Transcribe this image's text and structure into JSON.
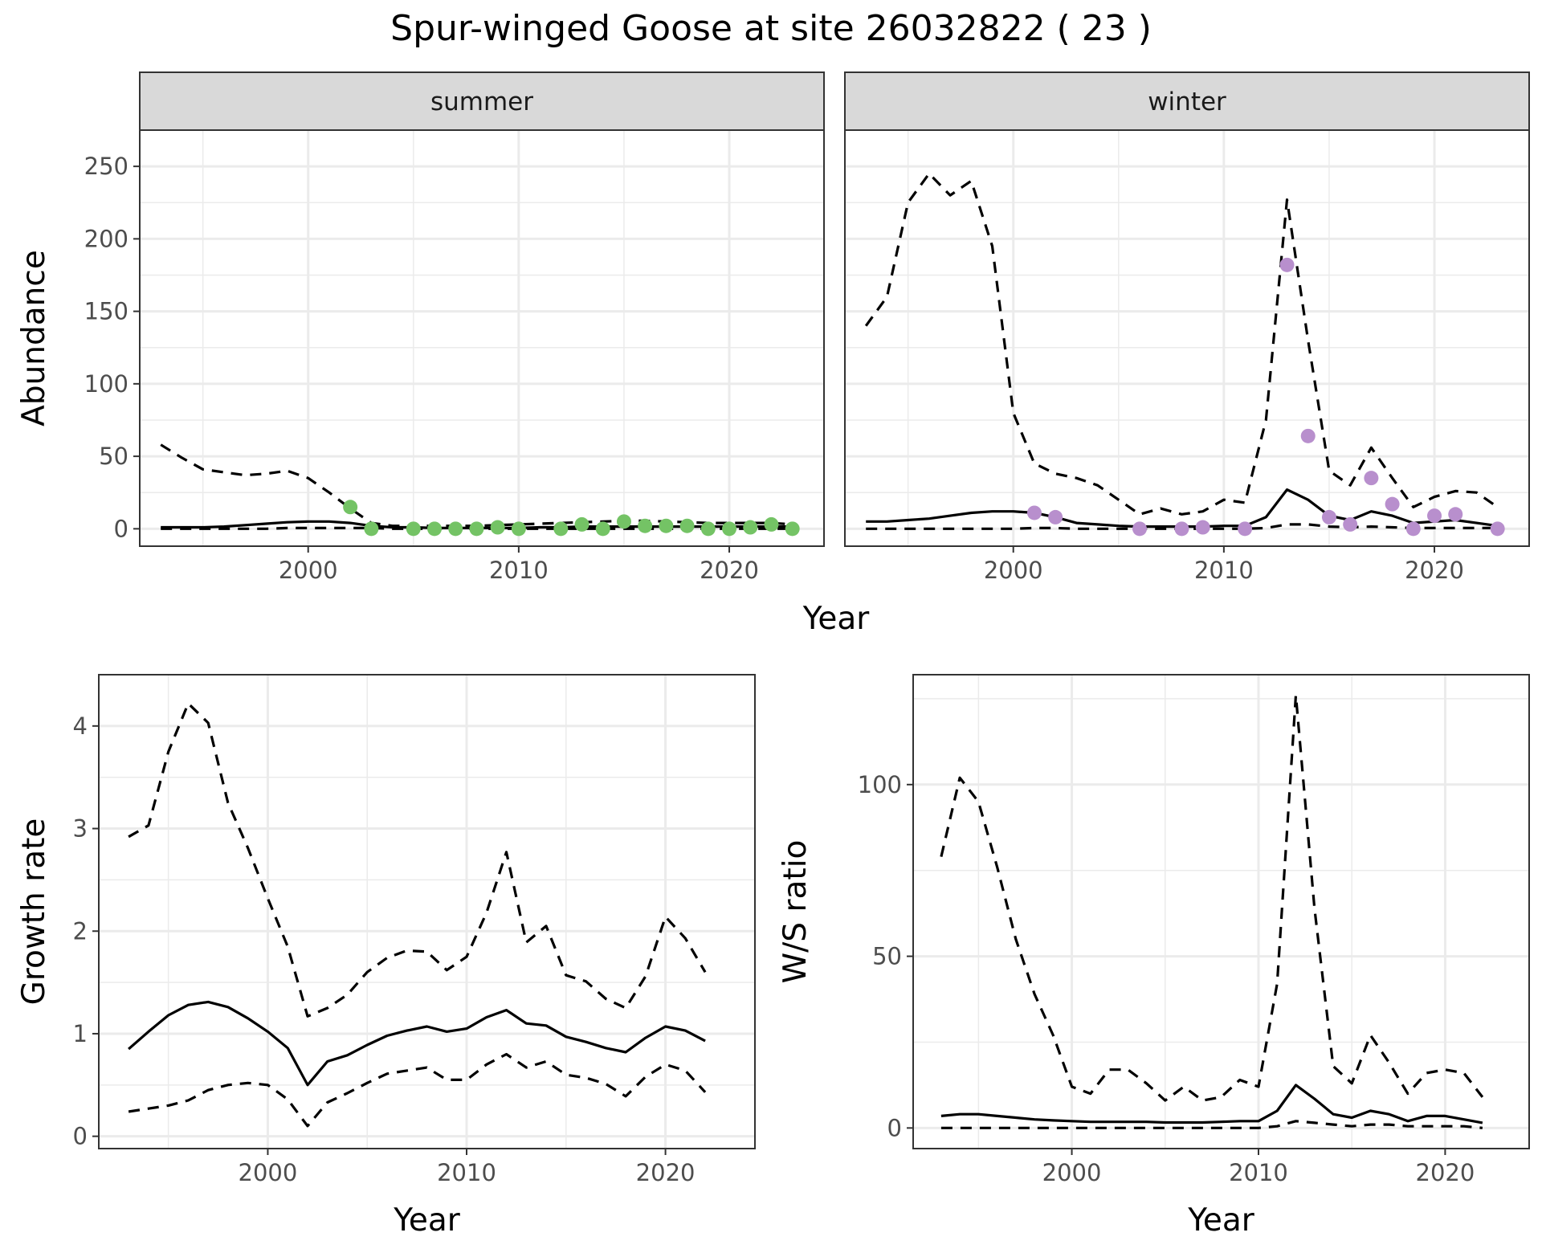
{
  "title": "Spur-winged Goose at site 26032822 ( 23 )",
  "abundance_xlabel": "Year",
  "colors": {
    "summer_points": "#74c365",
    "winter_points": "#b88fcd",
    "lines": "#000000",
    "strip_fill": "#d9d9d9",
    "grid": "#ebebeb"
  },
  "chart_data": [
    {
      "type": "line",
      "facet": "summer",
      "xlabel": "Year",
      "ylabel": "Abundance",
      "xlim": [
        1992,
        2024.5
      ],
      "ylim": [
        -12,
        275
      ],
      "xticks": [
        2000,
        2010,
        2020
      ],
      "yticks": [
        0,
        50,
        100,
        150,
        200,
        250
      ],
      "grid": true,
      "x": [
        1993,
        1994,
        1995,
        1996,
        1997,
        1998,
        1999,
        2000,
        2001,
        2002,
        2003,
        2004,
        2005,
        2006,
        2007,
        2008,
        2009,
        2010,
        2011,
        2012,
        2013,
        2014,
        2015,
        2016,
        2017,
        2018,
        2019,
        2020,
        2021,
        2022,
        2023
      ],
      "series": [
        {
          "role": "estimate",
          "values": [
            1,
            1,
            1,
            1.5,
            2.5,
            3.5,
            4.5,
            5,
            5,
            4,
            2,
            1,
            1,
            0.5,
            0.5,
            0.5,
            0.5,
            0.5,
            1,
            1,
            1.5,
            1.5,
            1.5,
            1.5,
            1.5,
            1.5,
            1.5,
            1.5,
            1.5,
            1.5,
            1.5
          ]
        },
        {
          "role": "upper",
          "values": [
            58,
            49,
            41,
            39,
            37,
            38,
            40,
            35,
            25,
            14,
            4,
            2,
            2,
            2,
            2,
            2,
            2.5,
            3,
            3.5,
            4,
            4.5,
            5,
            5.5,
            5.5,
            5,
            4.5,
            4,
            4,
            4,
            4,
            3
          ]
        },
        {
          "role": "lower",
          "values": [
            0,
            0,
            0,
            0,
            0,
            0,
            0.5,
            0.5,
            0.5,
            0.5,
            0.5,
            0,
            0,
            0,
            0,
            0,
            0,
            0,
            0,
            0,
            0,
            0,
            0,
            0,
            0,
            0,
            0,
            0,
            0,
            0,
            0
          ]
        }
      ],
      "points": {
        "x": [
          2002,
          2003,
          2005,
          2006,
          2007,
          2008,
          2009,
          2010,
          2012,
          2013,
          2014,
          2015,
          2016,
          2017,
          2018,
          2019,
          2020,
          2021,
          2022,
          2023
        ],
        "y": [
          15,
          0,
          0,
          0,
          0,
          0,
          1,
          0,
          0,
          3,
          0,
          5,
          2,
          2,
          2,
          0,
          0,
          1,
          3,
          0
        ]
      }
    },
    {
      "type": "line",
      "facet": "winter",
      "xlabel": "Year",
      "ylabel": "Abundance",
      "xlim": [
        1992,
        2024.5
      ],
      "ylim": [
        -12,
        275
      ],
      "xticks": [
        2000,
        2010,
        2020
      ],
      "yticks": [
        0,
        50,
        100,
        150,
        200,
        250
      ],
      "grid": true,
      "x": [
        1993,
        1994,
        1995,
        1996,
        1997,
        1998,
        1999,
        2000,
        2001,
        2002,
        2003,
        2004,
        2005,
        2006,
        2007,
        2008,
        2009,
        2010,
        2011,
        2012,
        2013,
        2014,
        2015,
        2016,
        2017,
        2018,
        2019,
        2020,
        2021,
        2022,
        2023
      ],
      "series": [
        {
          "role": "estimate",
          "values": [
            5,
            5,
            6,
            7,
            9,
            11,
            12,
            12,
            11,
            8,
            4,
            3,
            2,
            1.5,
            1.5,
            1.5,
            1.5,
            2,
            2,
            8,
            27,
            20,
            9,
            6,
            12,
            9,
            4,
            5,
            6,
            4,
            2
          ]
        },
        {
          "role": "upper",
          "values": [
            140,
            160,
            225,
            245,
            230,
            240,
            195,
            80,
            45,
            38,
            35,
            30,
            20,
            10,
            14,
            10,
            12,
            20,
            18,
            75,
            227,
            130,
            40,
            30,
            56,
            35,
            15,
            22,
            26,
            25,
            15
          ]
        },
        {
          "role": "lower",
          "values": [
            0,
            0,
            0,
            0,
            0,
            0,
            0,
            0,
            0.5,
            0.5,
            0,
            0,
            0,
            0,
            0,
            0,
            0,
            0,
            0,
            0.5,
            3,
            3,
            1.5,
            1,
            1.5,
            1,
            0.5,
            0.5,
            0.5,
            0.5,
            0.5
          ]
        }
      ],
      "points": {
        "x": [
          2001,
          2002,
          2006,
          2008,
          2009,
          2011,
          2013,
          2014,
          2015,
          2016,
          2017,
          2018,
          2019,
          2020,
          2021,
          2023
        ],
        "y": [
          11,
          8,
          0,
          0,
          1,
          0,
          182,
          64,
          8,
          3,
          35,
          17,
          0,
          9,
          10,
          0
        ]
      }
    },
    {
      "type": "line",
      "xlabel": "Year",
      "ylabel": "Growth rate",
      "xlim": [
        1991.5,
        2024.5
      ],
      "ylim": [
        -0.12,
        4.5
      ],
      "xticks": [
        2000,
        2010,
        2020
      ],
      "yticks": [
        0,
        1,
        2,
        3,
        4
      ],
      "grid": true,
      "x": [
        1993,
        1994,
        1995,
        1996,
        1997,
        1998,
        1999,
        2000,
        2001,
        2002,
        2003,
        2004,
        2005,
        2006,
        2007,
        2008,
        2009,
        2010,
        2011,
        2012,
        2013,
        2014,
        2015,
        2016,
        2017,
        2018,
        2019,
        2020,
        2021,
        2022
      ],
      "series": [
        {
          "role": "estimate",
          "values": [
            0.85,
            1.02,
            1.18,
            1.28,
            1.31,
            1.26,
            1.15,
            1.02,
            0.86,
            0.5,
            0.73,
            0.79,
            0.89,
            0.98,
            1.03,
            1.07,
            1.02,
            1.05,
            1.16,
            1.23,
            1.1,
            1.08,
            0.97,
            0.92,
            0.86,
            0.82,
            0.96,
            1.07,
            1.03,
            0.93
          ]
        },
        {
          "role": "upper",
          "values": [
            2.92,
            3.03,
            3.75,
            4.22,
            4.03,
            3.25,
            2.81,
            2.32,
            1.85,
            1.17,
            1.25,
            1.38,
            1.6,
            1.74,
            1.81,
            1.8,
            1.62,
            1.75,
            2.18,
            2.77,
            1.89,
            2.05,
            1.57,
            1.51,
            1.34,
            1.25,
            1.56,
            2.14,
            1.93,
            1.6
          ]
        },
        {
          "role": "lower",
          "values": [
            0.24,
            0.27,
            0.3,
            0.35,
            0.45,
            0.5,
            0.52,
            0.5,
            0.36,
            0.1,
            0.33,
            0.42,
            0.52,
            0.61,
            0.64,
            0.67,
            0.55,
            0.55,
            0.7,
            0.8,
            0.67,
            0.73,
            0.6,
            0.57,
            0.51,
            0.39,
            0.58,
            0.7,
            0.64,
            0.43
          ]
        }
      ]
    },
    {
      "type": "line",
      "xlabel": "Year",
      "ylabel": "W/S ratio",
      "xlim": [
        1991.5,
        2024.5
      ],
      "ylim": [
        -6,
        132
      ],
      "xticks": [
        2000,
        2010,
        2020
      ],
      "yticks": [
        0,
        50,
        100
      ],
      "grid": true,
      "x": [
        1993,
        1994,
        1995,
        1996,
        1997,
        1998,
        1999,
        2000,
        2001,
        2002,
        2003,
        2004,
        2005,
        2006,
        2007,
        2008,
        2009,
        2010,
        2011,
        2012,
        2013,
        2014,
        2015,
        2016,
        2017,
        2018,
        2019,
        2020,
        2021,
        2022
      ],
      "series": [
        {
          "role": "estimate",
          "values": [
            3.5,
            4,
            4,
            3.5,
            3,
            2.5,
            2.2,
            2,
            1.8,
            1.8,
            1.8,
            1.8,
            1.6,
            1.6,
            1.6,
            1.8,
            2,
            2,
            5,
            12.5,
            8.5,
            4,
            3,
            5,
            4,
            2,
            3.5,
            3.5,
            2.5,
            1.5
          ]
        },
        {
          "role": "upper",
          "values": [
            79,
            102,
            95,
            76,
            55,
            39,
            27,
            12,
            10,
            17,
            17,
            13,
            8,
            12,
            8,
            9,
            14,
            12,
            42,
            126,
            64,
            18,
            13,
            27,
            19,
            10,
            16,
            17,
            16,
            9
          ]
        },
        {
          "role": "lower",
          "values": [
            0,
            0,
            0,
            0,
            0,
            0,
            0,
            0,
            0,
            0,
            0,
            0,
            0,
            0,
            0,
            0,
            0,
            0,
            0.5,
            2,
            1.5,
            1,
            0.5,
            1,
            1,
            0.5,
            0.5,
            0.5,
            0.5,
            0
          ]
        }
      ]
    }
  ]
}
